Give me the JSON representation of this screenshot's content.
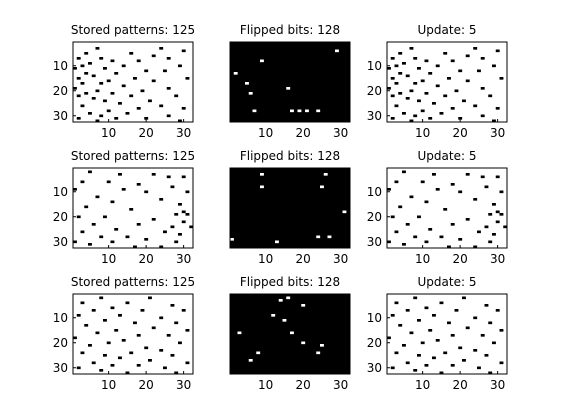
{
  "colors": {
    "background": "#ffffff",
    "on": "#000000",
    "off": "#ffffff",
    "axis": "#000000"
  },
  "chart_data": [
    {
      "type": "heatmap",
      "title": "Stored patterns: 125",
      "background": "white",
      "xlim": [
        0.5,
        32.5
      ],
      "ylim": [
        0.5,
        32.5
      ],
      "xticks": [
        10,
        20,
        30
      ],
      "yticks": [
        10,
        20,
        30
      ],
      "cells": [
        [
          7,
          3
        ],
        [
          24,
          3
        ],
        [
          30,
          4
        ],
        [
          4,
          5
        ],
        [
          16,
          5
        ],
        [
          22,
          6
        ],
        [
          2,
          7
        ],
        [
          8,
          7
        ],
        [
          26,
          7
        ],
        [
          11,
          8
        ],
        [
          18,
          8
        ],
        [
          5,
          9
        ],
        [
          3,
          10
        ],
        [
          14,
          10
        ],
        [
          29,
          10
        ],
        [
          1,
          11
        ],
        [
          9,
          11
        ],
        [
          20,
          12
        ],
        [
          25,
          12
        ],
        [
          4,
          13
        ],
        [
          12,
          13
        ],
        [
          6,
          14
        ],
        [
          2,
          15
        ],
        [
          17,
          15
        ],
        [
          31,
          15
        ],
        [
          10,
          16
        ],
        [
          22,
          16
        ],
        [
          3,
          17
        ],
        [
          8,
          17
        ],
        [
          14,
          18
        ],
        [
          1,
          19
        ],
        [
          26,
          19
        ],
        [
          7,
          20
        ],
        [
          19,
          20
        ],
        [
          4,
          21
        ],
        [
          11,
          21
        ],
        [
          2,
          22
        ],
        [
          16,
          22
        ],
        [
          28,
          22
        ],
        [
          6,
          23
        ],
        [
          9,
          24
        ],
        [
          21,
          24
        ],
        [
          13,
          25
        ],
        [
          3,
          26
        ],
        [
          24,
          26
        ],
        [
          18,
          27
        ],
        [
          30,
          27
        ],
        [
          10,
          28
        ],
        [
          5,
          29
        ],
        [
          15,
          29
        ],
        [
          8,
          30
        ],
        [
          26,
          30
        ],
        [
          2,
          31
        ],
        [
          12,
          31
        ],
        [
          20,
          31
        ],
        [
          7,
          32
        ],
        [
          29,
          32
        ]
      ]
    },
    {
      "type": "heatmap",
      "title": "Flipped bits: 128",
      "background": "black",
      "xlim": [
        0.5,
        32.5
      ],
      "ylim": [
        0.5,
        32.5
      ],
      "xticks": [
        10,
        20,
        30
      ],
      "yticks": [],
      "cells": [
        [
          29,
          4
        ],
        [
          9,
          8
        ],
        [
          2,
          13
        ],
        [
          5,
          17
        ],
        [
          16,
          19
        ],
        [
          6,
          21
        ],
        [
          7,
          28
        ],
        [
          17,
          28
        ],
        [
          19,
          28
        ],
        [
          21,
          28
        ],
        [
          24,
          28
        ]
      ]
    },
    {
      "type": "heatmap",
      "title": "Update: 5",
      "background": "white",
      "xlim": [
        0.5,
        32.5
      ],
      "ylim": [
        0.5,
        32.5
      ],
      "xticks": [
        10,
        20,
        30
      ],
      "yticks": [
        10,
        20,
        30
      ],
      "cells": [
        [
          7,
          3
        ],
        [
          24,
          3
        ],
        [
          30,
          4
        ],
        [
          4,
          5
        ],
        [
          16,
          5
        ],
        [
          22,
          6
        ],
        [
          2,
          7
        ],
        [
          8,
          7
        ],
        [
          26,
          7
        ],
        [
          11,
          8
        ],
        [
          18,
          8
        ],
        [
          5,
          9
        ],
        [
          3,
          10
        ],
        [
          14,
          10
        ],
        [
          29,
          10
        ],
        [
          1,
          11
        ],
        [
          9,
          11
        ],
        [
          20,
          12
        ],
        [
          25,
          12
        ],
        [
          4,
          13
        ],
        [
          12,
          13
        ],
        [
          6,
          14
        ],
        [
          2,
          15
        ],
        [
          17,
          15
        ],
        [
          31,
          15
        ],
        [
          10,
          16
        ],
        [
          22,
          16
        ],
        [
          3,
          17
        ],
        [
          8,
          17
        ],
        [
          14,
          18
        ],
        [
          1,
          19
        ],
        [
          26,
          19
        ],
        [
          7,
          20
        ],
        [
          19,
          20
        ],
        [
          4,
          21
        ],
        [
          11,
          21
        ],
        [
          2,
          22
        ],
        [
          16,
          22
        ],
        [
          28,
          22
        ],
        [
          6,
          23
        ],
        [
          9,
          24
        ],
        [
          21,
          24
        ],
        [
          13,
          25
        ],
        [
          3,
          26
        ],
        [
          24,
          26
        ],
        [
          18,
          27
        ],
        [
          30,
          27
        ],
        [
          10,
          28
        ],
        [
          5,
          29
        ],
        [
          15,
          29
        ],
        [
          8,
          30
        ],
        [
          26,
          30
        ],
        [
          2,
          31
        ],
        [
          12,
          31
        ],
        [
          20,
          31
        ],
        [
          7,
          32
        ],
        [
          29,
          32
        ]
      ]
    },
    {
      "type": "heatmap",
      "title": "Stored patterns: 125",
      "background": "white",
      "xlim": [
        0.5,
        32.5
      ],
      "ylim": [
        0.5,
        32.5
      ],
      "xticks": [
        10,
        20,
        30
      ],
      "yticks": [
        10,
        20,
        30
      ],
      "cells": [
        [
          5,
          2
        ],
        [
          13,
          3
        ],
        [
          22,
          3
        ],
        [
          26,
          4
        ],
        [
          30,
          4
        ],
        [
          3,
          6
        ],
        [
          10,
          6
        ],
        [
          18,
          7
        ],
        [
          27,
          8
        ],
        [
          1,
          9
        ],
        [
          14,
          9
        ],
        [
          20,
          10
        ],
        [
          31,
          10
        ],
        [
          7,
          12
        ],
        [
          24,
          13
        ],
        [
          11,
          14
        ],
        [
          29,
          15
        ],
        [
          4,
          16
        ],
        [
          16,
          17
        ],
        [
          30,
          18
        ],
        [
          28,
          19
        ],
        [
          31,
          19
        ],
        [
          2,
          20
        ],
        [
          9,
          20
        ],
        [
          22,
          21
        ],
        [
          30,
          22
        ],
        [
          6,
          23
        ],
        [
          18,
          23
        ],
        [
          27,
          24
        ],
        [
          32,
          24
        ],
        [
          12,
          25
        ],
        [
          3,
          26
        ],
        [
          25,
          26
        ],
        [
          29,
          27
        ],
        [
          8,
          28
        ],
        [
          15,
          28
        ],
        [
          20,
          29
        ],
        [
          1,
          30
        ],
        [
          11,
          30
        ],
        [
          28,
          30
        ],
        [
          5,
          31
        ],
        [
          17,
          32
        ],
        [
          24,
          32
        ]
      ]
    },
    {
      "type": "heatmap",
      "title": "Flipped bits: 128",
      "background": "black",
      "xlim": [
        0.5,
        32.5
      ],
      "ylim": [
        0.5,
        32.5
      ],
      "xticks": [
        10,
        20,
        30
      ],
      "yticks": [],
      "cells": [
        [
          9,
          3
        ],
        [
          26,
          3
        ],
        [
          9,
          8
        ],
        [
          25,
          8
        ],
        [
          31,
          18
        ],
        [
          1,
          29
        ],
        [
          13,
          30
        ],
        [
          24,
          28
        ],
        [
          27,
          28
        ]
      ]
    },
    {
      "type": "heatmap",
      "title": "Update: 5",
      "background": "white",
      "xlim": [
        0.5,
        32.5
      ],
      "ylim": [
        0.5,
        32.5
      ],
      "xticks": [
        10,
        20,
        30
      ],
      "yticks": [
        10,
        20,
        30
      ],
      "cells": [
        [
          5,
          2
        ],
        [
          13,
          3
        ],
        [
          22,
          3
        ],
        [
          26,
          4
        ],
        [
          30,
          4
        ],
        [
          3,
          6
        ],
        [
          10,
          6
        ],
        [
          18,
          7
        ],
        [
          27,
          8
        ],
        [
          1,
          9
        ],
        [
          14,
          9
        ],
        [
          20,
          10
        ],
        [
          31,
          10
        ],
        [
          7,
          12
        ],
        [
          24,
          13
        ],
        [
          11,
          14
        ],
        [
          29,
          15
        ],
        [
          4,
          16
        ],
        [
          16,
          17
        ],
        [
          30,
          18
        ],
        [
          28,
          19
        ],
        [
          31,
          19
        ],
        [
          2,
          20
        ],
        [
          9,
          20
        ],
        [
          22,
          21
        ],
        [
          30,
          22
        ],
        [
          6,
          23
        ],
        [
          18,
          23
        ],
        [
          27,
          24
        ],
        [
          32,
          24
        ],
        [
          12,
          25
        ],
        [
          3,
          26
        ],
        [
          25,
          26
        ],
        [
          29,
          27
        ],
        [
          8,
          28
        ],
        [
          15,
          28
        ],
        [
          20,
          29
        ],
        [
          1,
          30
        ],
        [
          11,
          30
        ],
        [
          28,
          30
        ],
        [
          5,
          31
        ],
        [
          17,
          32
        ],
        [
          24,
          32
        ]
      ]
    },
    {
      "type": "heatmap",
      "title": "Stored patterns: 125",
      "background": "white",
      "xlim": [
        0.5,
        32.5
      ],
      "ylim": [
        0.5,
        32.5
      ],
      "xticks": [
        10,
        20,
        30
      ],
      "yticks": [
        10,
        20,
        30
      ],
      "cells": [
        [
          8,
          2
        ],
        [
          21,
          2
        ],
        [
          3,
          4
        ],
        [
          15,
          4
        ],
        [
          27,
          5
        ],
        [
          11,
          6
        ],
        [
          6,
          7
        ],
        [
          19,
          7
        ],
        [
          30,
          7
        ],
        [
          2,
          9
        ],
        [
          13,
          9
        ],
        [
          24,
          10
        ],
        [
          9,
          11
        ],
        [
          17,
          12
        ],
        [
          28,
          12
        ],
        [
          4,
          13
        ],
        [
          22,
          14
        ],
        [
          12,
          15
        ],
        [
          31,
          15
        ],
        [
          7,
          16
        ],
        [
          18,
          17
        ],
        [
          26,
          17
        ],
        [
          1,
          18
        ],
        [
          14,
          19
        ],
        [
          10,
          20
        ],
        [
          29,
          20
        ],
        [
          5,
          21
        ],
        [
          20,
          22
        ],
        [
          24,
          23
        ],
        [
          3,
          24
        ],
        [
          16,
          24
        ],
        [
          9,
          25
        ],
        [
          27,
          25
        ],
        [
          13,
          26
        ],
        [
          21,
          27
        ],
        [
          6,
          28
        ],
        [
          31,
          28
        ],
        [
          11,
          29
        ],
        [
          18,
          29
        ],
        [
          2,
          30
        ],
        [
          25,
          30
        ],
        [
          8,
          31
        ],
        [
          15,
          32
        ],
        [
          28,
          32
        ]
      ]
    },
    {
      "type": "heatmap",
      "title": "Flipped bits: 128",
      "background": "black",
      "xlim": [
        0.5,
        32.5
      ],
      "ylim": [
        0.5,
        32.5
      ],
      "xticks": [
        10,
        20,
        30
      ],
      "yticks": [],
      "cells": [
        [
          14,
          3
        ],
        [
          16,
          2
        ],
        [
          20,
          5
        ],
        [
          12,
          9
        ],
        [
          15,
          11
        ],
        [
          3,
          16
        ],
        [
          17,
          16
        ],
        [
          20,
          20
        ],
        [
          25,
          21
        ],
        [
          8,
          24
        ],
        [
          24,
          24
        ],
        [
          6,
          27
        ]
      ]
    },
    {
      "type": "heatmap",
      "title": "Update: 5",
      "background": "white",
      "xlim": [
        0.5,
        32.5
      ],
      "ylim": [
        0.5,
        32.5
      ],
      "xticks": [
        10,
        20,
        30
      ],
      "yticks": [
        10,
        20,
        30
      ],
      "cells": [
        [
          8,
          2
        ],
        [
          21,
          2
        ],
        [
          3,
          4
        ],
        [
          15,
          4
        ],
        [
          27,
          5
        ],
        [
          11,
          6
        ],
        [
          6,
          7
        ],
        [
          19,
          7
        ],
        [
          30,
          7
        ],
        [
          2,
          9
        ],
        [
          13,
          9
        ],
        [
          24,
          10
        ],
        [
          9,
          11
        ],
        [
          17,
          12
        ],
        [
          28,
          12
        ],
        [
          4,
          13
        ],
        [
          22,
          14
        ],
        [
          12,
          15
        ],
        [
          31,
          15
        ],
        [
          7,
          16
        ],
        [
          18,
          17
        ],
        [
          26,
          17
        ],
        [
          1,
          18
        ],
        [
          14,
          19
        ],
        [
          10,
          20
        ],
        [
          29,
          20
        ],
        [
          5,
          21
        ],
        [
          20,
          22
        ],
        [
          24,
          23
        ],
        [
          3,
          24
        ],
        [
          16,
          24
        ],
        [
          9,
          25
        ],
        [
          27,
          25
        ],
        [
          13,
          26
        ],
        [
          21,
          27
        ],
        [
          6,
          28
        ],
        [
          31,
          28
        ],
        [
          11,
          29
        ],
        [
          18,
          29
        ],
        [
          2,
          30
        ],
        [
          25,
          30
        ],
        [
          8,
          31
        ],
        [
          15,
          32
        ],
        [
          28,
          32
        ]
      ]
    }
  ]
}
